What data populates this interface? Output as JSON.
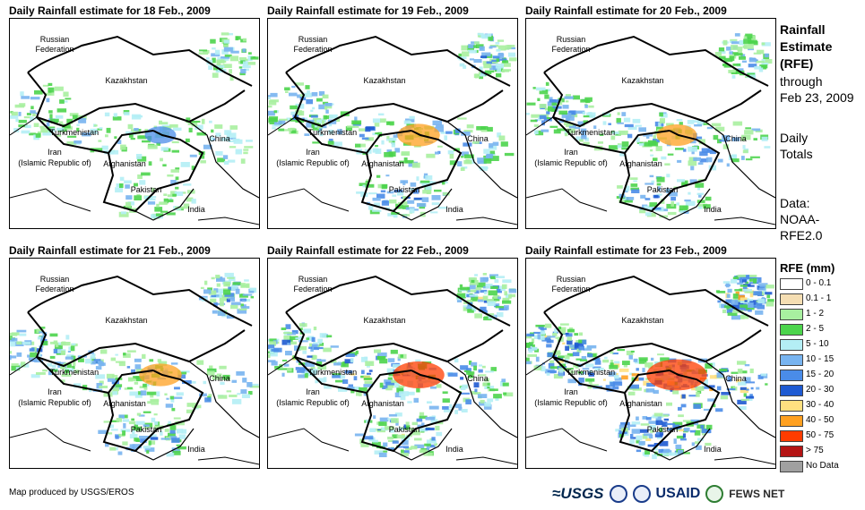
{
  "panels": [
    {
      "title": "Daily Rainfall estimate for 18 Feb., 2009",
      "intensity": 0.3
    },
    {
      "title": "Daily Rainfall estimate for 19 Feb., 2009",
      "intensity": 0.55
    },
    {
      "title": "Daily Rainfall estimate for 20 Feb., 2009",
      "intensity": 0.5
    },
    {
      "title": "Daily Rainfall estimate for 21 Feb., 2009",
      "intensity": 0.55
    },
    {
      "title": "Daily Rainfall estimate for 22 Feb., 2009",
      "intensity": 0.75
    },
    {
      "title": "Daily Rainfall estimate for 23 Feb., 2009",
      "intensity": 0.95
    }
  ],
  "labels": {
    "russia_line1": "Russian",
    "russia_line2": "Federation",
    "kazakhstan": "Kazakhstan",
    "turkmenistan": "Turkmenistan",
    "iran_line1": "Iran",
    "iran_line2": "(Islamic Republic of)",
    "afghanistan": "Afghanistan",
    "pakistan": "Pakistan",
    "china": "China",
    "india": "India"
  },
  "side": {
    "title_line1": "Rainfall",
    "title_line2": "Estimate",
    "title_line3": "(RFE)",
    "through_line1": "through",
    "through_line2": "Feb 23, 2009",
    "totals_line1": "Daily",
    "totals_line2": "Totals",
    "data_line1": "Data:",
    "data_line2": "NOAA-",
    "data_line3": "RFE2.0"
  },
  "legend": {
    "title": "RFE (mm)",
    "items": [
      {
        "label": "0 - 0.1",
        "color": "#ffffff"
      },
      {
        "label": "0.1 - 1",
        "color": "#f5deb3"
      },
      {
        "label": "1 - 2",
        "color": "#a8f0a0"
      },
      {
        "label": "2 - 5",
        "color": "#4cd44c"
      },
      {
        "label": "5 - 10",
        "color": "#b4eef5"
      },
      {
        "label": "10 - 15",
        "color": "#78b4f0"
      },
      {
        "label": "15 - 20",
        "color": "#4a8ce8"
      },
      {
        "label": "20 - 30",
        "color": "#1e5ad2"
      },
      {
        "label": "30 - 40",
        "color": "#ffe080"
      },
      {
        "label": "40 - 50",
        "color": "#ffa020"
      },
      {
        "label": "50 - 75",
        "color": "#ff3c00"
      },
      {
        "label": "> 75",
        "color": "#b41414"
      },
      {
        "label": "No Data",
        "color": "#a0a0a0"
      }
    ]
  },
  "footer": "Map produced by USGS/EROS",
  "logos": {
    "usgs": "≈USGS",
    "usaid": "USAID",
    "fews": "FEWS NET"
  }
}
